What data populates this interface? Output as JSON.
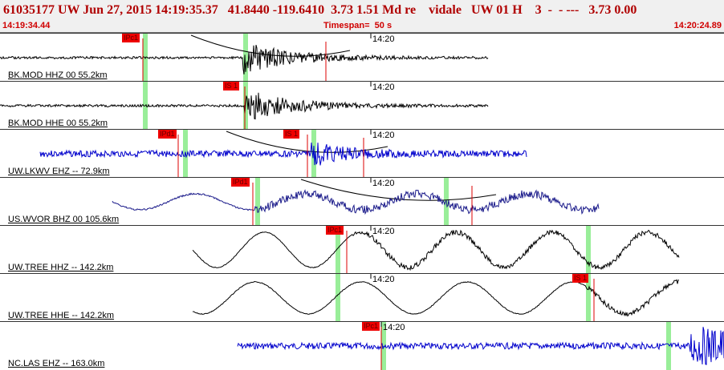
{
  "header": {
    "title": "61035177 UW Jun 27, 2015 14:19:35.37   41.8440 -119.6410  3.73 1.51 Md re    vidale   UW 01 H    3  -  - ---   3.73 0.00",
    "start_time": "14:19:34.44",
    "timespan": "Timespan=  50 s",
    "end_time": "14:20:24.89"
  },
  "colors": {
    "black_trace": "#000000",
    "blue_trace": "#0000cc",
    "green_band": "#99ee99",
    "pick_line": "#dd0000"
  },
  "time_marker": "14:20",
  "panels": [
    {
      "label": "BK.MOD HHZ 00 55.2km",
      "color": "#000000",
      "pick": "IPc1",
      "kind": "eq",
      "seed": 1
    },
    {
      "label": "BK.MOD HHE 00 55.2km",
      "color": "#000000",
      "pick": "IS 1",
      "kind": "eq2",
      "seed": 2
    },
    {
      "label": "UW.LKWV EHZ -- 72.9km",
      "color": "#0000cc",
      "pick": "IPd1",
      "pick2": "IS 1",
      "kind": "noise",
      "seed": 3
    },
    {
      "label": "US.WVOR BHZ 00 105.6km",
      "color": "#1a1a8a",
      "pick": "IPd1",
      "kind": "slow",
      "seed": 4
    },
    {
      "label": "UW.TREE HHZ -- 142.2km",
      "color": "#000000",
      "pick": "IPc1",
      "kind": "swell",
      "seed": 5
    },
    {
      "label": "UW.TREE HHE -- 142.2km",
      "color": "#000000",
      "pick": "IS 1",
      "kind": "swell2",
      "seed": 6
    },
    {
      "label": "NC.LAS EHZ -- 163.0km",
      "color": "#0000cc",
      "pick": "IPc1",
      "kind": "noise2",
      "seed": 7
    }
  ]
}
